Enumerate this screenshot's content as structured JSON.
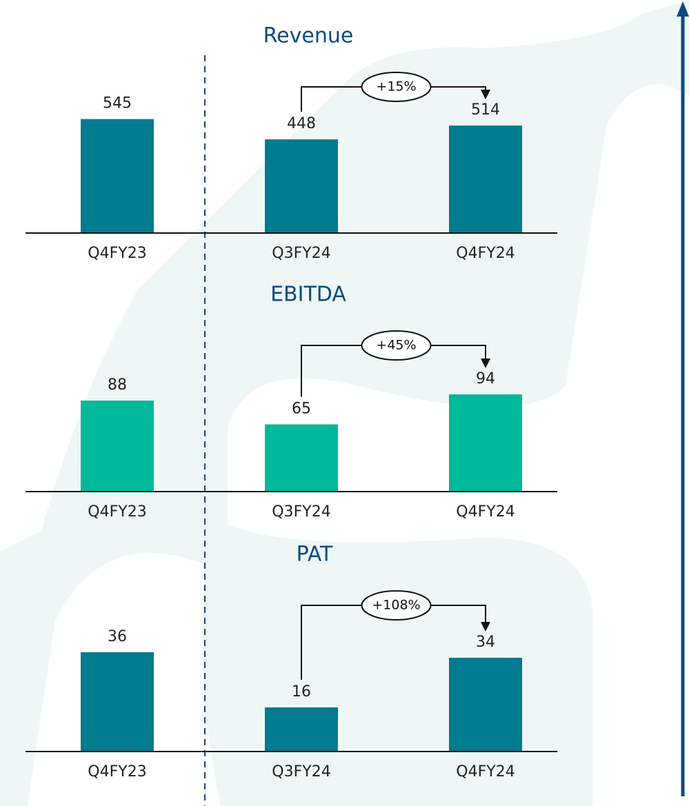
{
  "chart_data": [
    {
      "type": "bar",
      "title": "Revenue",
      "categories": [
        "Q4FY23",
        "Q3FY24",
        "Q4FY24"
      ],
      "values": [
        545,
        448,
        514
      ],
      "color": "#007b8f",
      "ylim": [
        0,
        600
      ],
      "annotation": "+15%"
    },
    {
      "type": "bar",
      "title": "EBITDA",
      "categories": [
        "Q4FY23",
        "Q3FY24",
        "Q4FY24"
      ],
      "values": [
        88,
        65,
        94
      ],
      "color": "#00b89a",
      "ylim": [
        0,
        100
      ],
      "annotation": "+45%"
    },
    {
      "type": "bar",
      "title": "PAT",
      "categories": [
        "Q4FY23",
        "Q3FY24",
        "Q4FY24"
      ],
      "values": [
        36,
        16,
        34
      ],
      "color": "#007b8f",
      "ylim": [
        0,
        40
      ],
      "annotation": "+108%"
    }
  ]
}
